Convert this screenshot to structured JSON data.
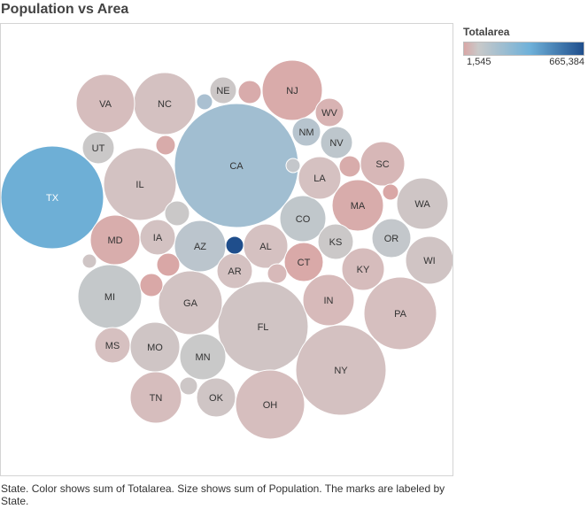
{
  "title": "Population vs Area",
  "legend": {
    "title": "Totalarea",
    "min_label": "1,545",
    "max_label": "665,384",
    "color_low": "#d9a7a6",
    "color_mid": "#c9c9c9",
    "color_high": "#1f4e8c"
  },
  "caption": "State.  Color shows sum of Totalarea.  Size shows sum of Population.  The marks are labeled by State.",
  "chart_data": {
    "type": "bubble",
    "title": "Population vs Area",
    "color_measure": "Totalarea",
    "size_measure": "Population",
    "label_field": "State",
    "color_range": [
      1545,
      665384
    ],
    "bubbles": [
      {
        "label": "TX",
        "area": 268596
      },
      {
        "label": "CA",
        "area": 163695
      },
      {
        "label": "FL",
        "area": 65758
      },
      {
        "label": "NY",
        "area": 54555
      },
      {
        "label": "IL",
        "area": 57914
      },
      {
        "label": "PA",
        "area": 46054
      },
      {
        "label": "OH",
        "area": 44826
      },
      {
        "label": "GA",
        "area": 59425
      },
      {
        "label": "MI",
        "area": 96714
      },
      {
        "label": "NC",
        "area": 53819
      },
      {
        "label": "NJ",
        "area": 8723
      },
      {
        "label": "VA",
        "area": 42775
      },
      {
        "label": "WA",
        "area": 71298
      },
      {
        "label": "MA",
        "area": 10554
      },
      {
        "label": "IN",
        "area": 36420
      },
      {
        "label": "AZ",
        "area": 113990
      },
      {
        "label": "TN",
        "area": 42144
      },
      {
        "label": "MO",
        "area": 69707
      },
      {
        "label": "MD",
        "area": 12406
      },
      {
        "label": "WI",
        "area": 65496
      },
      {
        "label": "MN",
        "area": 86936
      },
      {
        "label": "CO",
        "area": 104094
      },
      {
        "label": "AL",
        "area": 52420
      },
      {
        "label": "SC",
        "area": 32020
      },
      {
        "label": "LA",
        "area": 52378
      },
      {
        "label": "KY",
        "area": 40408
      },
      {
        "label": "OR",
        "area": 98379
      },
      {
        "label": "OK",
        "area": 69899
      },
      {
        "label": "CT",
        "area": 5543
      },
      {
        "label": "IA",
        "area": 56273
      },
      {
        "label": "MS",
        "area": 48432
      },
      {
        "label": "AR",
        "area": 53179
      },
      {
        "label": "KS",
        "area": 82278
      },
      {
        "label": "UT",
        "area": 84897
      },
      {
        "label": "NV",
        "area": 110572
      },
      {
        "label": "NM",
        "area": 121590
      },
      {
        "label": "WV",
        "area": 24230
      },
      {
        "label": "NE",
        "area": 77348
      },
      {
        "label": "",
        "area": 665384
      },
      {
        "label": "",
        "area": 83569
      },
      {
        "label": "",
        "area": 10932
      },
      {
        "label": "",
        "area": 9616
      },
      {
        "label": "",
        "area": 2489
      },
      {
        "label": "",
        "area": 1545
      },
      {
        "label": "",
        "area": 35380
      },
      {
        "label": "",
        "area": 1955
      },
      {
        "label": "",
        "area": 147040
      },
      {
        "label": "",
        "area": 9349
      },
      {
        "label": "",
        "area": 70698
      },
      {
        "label": "",
        "area": 77116
      },
      {
        "label": "",
        "area": 97813
      }
    ]
  }
}
